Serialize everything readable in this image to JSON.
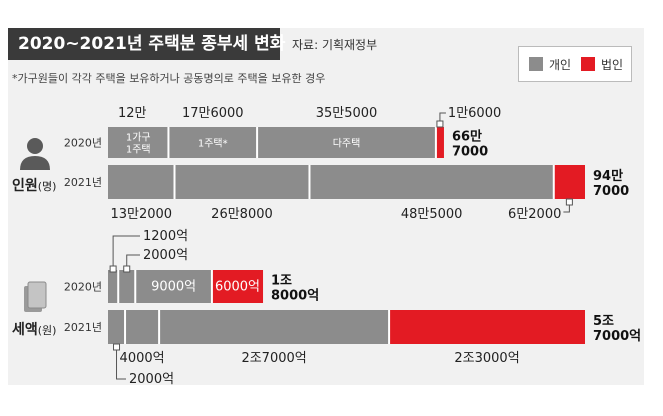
{
  "header": {
    "title": "2020~2021년 주택분 종부세 변화",
    "source": "자료: 기획재정부",
    "note": "*가구원들이 각각 주택을 보유하거나 공동명의로 주택을 보유한 경우"
  },
  "legend": {
    "items": [
      {
        "label": "개인",
        "color": "#8c8c8c"
      },
      {
        "label": "법인",
        "color": "#e31b23"
      }
    ]
  },
  "colors": {
    "individual": "#8c8c8c",
    "corporate": "#e31b23"
  },
  "chart_data": [
    {
      "type": "bar",
      "section": "인원",
      "unit": "(명)",
      "stacked": true,
      "rows": [
        {
          "label": "2020년",
          "total_label": "66만\n7000",
          "segments": [
            {
              "value": 120000,
              "label": "12만",
              "inner": "1가구\n1주택",
              "kind": "individual"
            },
            {
              "value": 176000,
              "label": "17만6000",
              "inner": "1주택*",
              "kind": "individual"
            },
            {
              "value": 355000,
              "label": "35만5000",
              "inner": "다주택",
              "kind": "individual"
            },
            {
              "value": 16000,
              "label": "1만6000",
              "kind": "corporate"
            }
          ]
        },
        {
          "label": "2021년",
          "total_label": "94만\n7000",
          "segments": [
            {
              "value": 132000,
              "label": "13만2000",
              "kind": "individual"
            },
            {
              "value": 268000,
              "label": "26만8000",
              "kind": "individual"
            },
            {
              "value": 485000,
              "label": "48만5000",
              "kind": "individual"
            },
            {
              "value": 62000,
              "label": "6만2000",
              "kind": "corporate"
            }
          ]
        }
      ]
    },
    {
      "type": "bar",
      "section": "세액",
      "unit": "(원)",
      "stacked": true,
      "rows": [
        {
          "label": "2020년",
          "total_label": "1조\n8000억",
          "segments": [
            {
              "value": 1200,
              "label": "1200억",
              "kind": "individual"
            },
            {
              "value": 2000,
              "label": "2000억",
              "kind": "individual"
            },
            {
              "value": 9000,
              "label": "9000억",
              "inner": "9000억",
              "kind": "individual"
            },
            {
              "value": 6000,
              "label": "6000억",
              "inner": "6000억",
              "kind": "corporate"
            }
          ]
        },
        {
          "label": "2021년",
          "total_label": "5조\n7000억",
          "segments": [
            {
              "value": 2000,
              "label": "2000억",
              "kind": "individual"
            },
            {
              "value": 4000,
              "label": "4000억",
              "kind": "individual"
            },
            {
              "value": 27000,
              "label": "2조7000억",
              "kind": "individual"
            },
            {
              "value": 23000,
              "label": "2조3000억",
              "kind": "corporate"
            }
          ]
        }
      ]
    }
  ]
}
